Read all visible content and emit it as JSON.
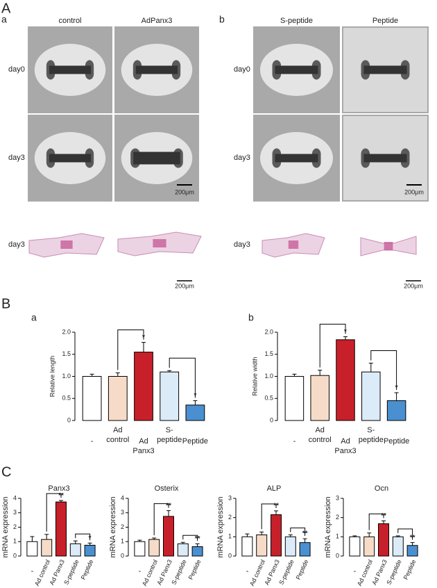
{
  "figure": {
    "panel_A": "A",
    "panel_B": "B",
    "panel_C": "C"
  },
  "micrographs": [
    {
      "label": "a",
      "columns": [
        "control",
        "AdPanx3"
      ],
      "rows": [
        "day0",
        "day3"
      ],
      "histology_row": "day3",
      "scale_bar": "200μm",
      "histology_scale_bar": "200μm"
    },
    {
      "label": "b",
      "columns": [
        "S-peptide",
        "Peptide"
      ],
      "rows": [
        "day0",
        "day3"
      ],
      "histology_row": "day3",
      "scale_bar": "200μm",
      "histology_scale_bar": "200μm"
    }
  ],
  "chart_data": [
    {
      "type": "bar",
      "label": "a",
      "ylabel": "Relative length",
      "categories": [
        "-",
        "Ad control",
        "Ad Panx3",
        "S- peptide",
        "Peptide"
      ],
      "values": [
        1.0,
        1.0,
        1.55,
        1.1,
        0.35
      ],
      "errors": [
        0.05,
        0.08,
        0.22,
        0.03,
        0.1
      ],
      "colors": [
        "#ffffff",
        "#f6dcc8",
        "#c8202a",
        "#dcebf8",
        "#4a90d0"
      ],
      "significance": [
        null,
        null,
        "*",
        null,
        "*"
      ],
      "ylim": [
        0,
        2
      ],
      "yticks": [
        0,
        0.5,
        {
          "value": 1,
          "label": "1.0"
        },
        1.5,
        {
          "value": 2,
          "label": "2.0"
        }
      ],
      "rotate_labels": false
    },
    {
      "type": "bar",
      "label": "b",
      "ylabel": "Relative width",
      "categories": [
        "-",
        "Ad control",
        "Ad Panx3",
        "S- peptide",
        "Peptide"
      ],
      "values": [
        1.0,
        1.02,
        1.83,
        1.1,
        0.45
      ],
      "errors": [
        0.05,
        0.12,
        0.07,
        0.2,
        0.18
      ],
      "colors": [
        "#ffffff",
        "#f6dcc8",
        "#c8202a",
        "#dcebf8",
        "#4a90d0"
      ],
      "significance": [
        null,
        null,
        "*",
        null,
        "*"
      ],
      "ylim": [
        0,
        2
      ],
      "yticks": [
        0,
        0.5,
        {
          "value": 1,
          "label": "1.0"
        },
        1.5,
        {
          "value": 2,
          "label": "2.0"
        }
      ],
      "rotate_labels": false
    },
    {
      "type": "bar",
      "title": "Panx3",
      "ylabel": "mRNA expression",
      "categories": [
        "-",
        "Ad control",
        "Ad Panx3",
        "S-peptide",
        "Peptide"
      ],
      "values": [
        1.0,
        1.15,
        3.75,
        0.85,
        0.75
      ],
      "errors": [
        0.35,
        0.35,
        0.1,
        0.2,
        0.15
      ],
      "colors": [
        "#ffffff",
        "#f6dcc8",
        "#c8202a",
        "#dcebf8",
        "#4a90d0"
      ],
      "significance": [
        null,
        null,
        "**",
        null,
        "*"
      ],
      "ylim": [
        0,
        4
      ],
      "yticks": [
        0,
        1,
        2,
        3,
        4
      ],
      "rotate_labels": true
    },
    {
      "type": "bar",
      "title": "Osterix",
      "ylabel": "mRNA expression",
      "categories": [
        "-",
        "Ad control",
        "Ad Panx3",
        "S-peptide",
        "Peptide"
      ],
      "values": [
        1.0,
        1.15,
        2.75,
        0.85,
        0.65
      ],
      "errors": [
        0.1,
        0.1,
        0.4,
        0.1,
        0.2
      ],
      "colors": [
        "#ffffff",
        "#f6dcc8",
        "#c8202a",
        "#dcebf8",
        "#4a90d0"
      ],
      "significance": [
        null,
        null,
        "**",
        null,
        "**"
      ],
      "ylim": [
        0,
        4
      ],
      "yticks": [
        0,
        1,
        2,
        3,
        4
      ],
      "rotate_labels": true
    },
    {
      "type": "bar",
      "title": "ALP",
      "ylabel": "mRNA expression",
      "categories": [
        "-",
        "Ad control",
        "Ad Panx3",
        "S-peptide",
        "Peptide"
      ],
      "values": [
        1.0,
        1.1,
        2.15,
        1.0,
        0.7
      ],
      "errors": [
        0.15,
        0.15,
        0.2,
        0.1,
        0.2
      ],
      "colors": [
        "#ffffff",
        "#f6dcc8",
        "#c8202a",
        "#dcebf8",
        "#4a90d0"
      ],
      "significance": [
        null,
        null,
        "**",
        null,
        "**"
      ],
      "ylim": [
        0,
        3
      ],
      "yticks": [
        0,
        1,
        2,
        3
      ],
      "rotate_labels": true
    },
    {
      "type": "bar",
      "title": "Ocn",
      "ylabel": "mRNA expression",
      "categories": [
        "-",
        "Ad control",
        "Ad Panx3",
        "S-peptide",
        "Peptide"
      ],
      "values": [
        1.0,
        1.0,
        1.68,
        1.0,
        0.55
      ],
      "errors": [
        0.05,
        0.2,
        0.15,
        0.05,
        0.15
      ],
      "colors": [
        "#ffffff",
        "#f6dcc8",
        "#c8202a",
        "#dcebf8",
        "#4a90d0"
      ],
      "significance": [
        null,
        null,
        "**",
        null,
        "**"
      ],
      "ylim": [
        0,
        3
      ],
      "yticks": [
        0,
        1,
        2,
        3
      ],
      "rotate_labels": true
    }
  ]
}
